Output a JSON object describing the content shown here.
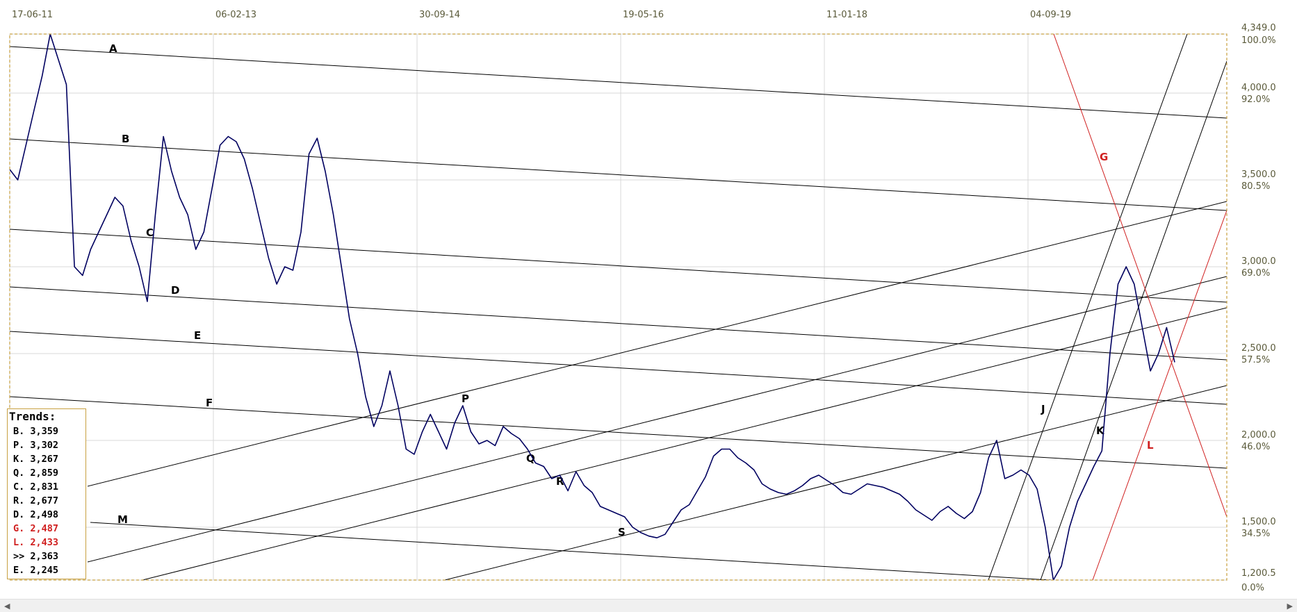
{
  "chart_data": {
    "type": "line",
    "x_ticks": [
      "17-06-11",
      "06-02-13",
      "30-09-14",
      "19-05-16",
      "11-01-18",
      "04-09-19"
    ],
    "y_ticks": [
      {
        "value": "4,349.0",
        "pct": "100.0%"
      },
      {
        "value": "4,000.0",
        "pct": "92.0%"
      },
      {
        "value": "3,500.0",
        "pct": "80.5%"
      },
      {
        "value": "3,000.0",
        "pct": "69.0%"
      },
      {
        "value": "2,500.0",
        "pct": "57.5%"
      },
      {
        "value": "2,000.0",
        "pct": "46.0%"
      },
      {
        "value": "1,500.0",
        "pct": "34.5%"
      },
      {
        "value": "1,200.5",
        "pct": "0.0%"
      }
    ],
    "price_series": [
      3560,
      3500,
      3700,
      3900,
      4100,
      4349,
      4200,
      4050,
      3000,
      2950,
      3100,
      3200,
      3300,
      3400,
      3350,
      3150,
      3000,
      2800,
      3300,
      3750,
      3550,
      3400,
      3300,
      3100,
      3200,
      3450,
      3700,
      3750,
      3720,
      3620,
      3450,
      3250,
      3050,
      2900,
      3000,
      2980,
      3200,
      3650,
      3740,
      3550,
      3300,
      3000,
      2700,
      2500,
      2250,
      2080,
      2200,
      2400,
      2200,
      1950,
      1920,
      2050,
      2150,
      2050,
      1950,
      2100,
      2200,
      2050,
      1980,
      2000,
      1970,
      2080,
      2040,
      2010,
      1950,
      1870,
      1850,
      1780,
      1800,
      1710,
      1820,
      1740,
      1700,
      1620,
      1600,
      1580,
      1560,
      1500,
      1470,
      1450,
      1440,
      1460,
      1530,
      1600,
      1630,
      1710,
      1790,
      1910,
      1950,
      1950,
      1900,
      1870,
      1830,
      1750,
      1720,
      1700,
      1690,
      1710,
      1740,
      1780,
      1800,
      1770,
      1740,
      1700,
      1690,
      1720,
      1750,
      1740,
      1730,
      1710,
      1690,
      1650,
      1600,
      1570,
      1540,
      1590,
      1620,
      1580,
      1550,
      1590,
      1700,
      1900,
      2000,
      1780,
      1800,
      1830,
      1800,
      1720,
      1500,
      1200,
      1280,
      1500,
      1650,
      1750,
      1850,
      1940,
      2500,
      2900,
      3000,
      2900,
      2650,
      2400,
      2500,
      2650,
      2450
    ],
    "trend_lines": [
      {
        "label": "A",
        "color": "black"
      },
      {
        "label": "B",
        "color": "black"
      },
      {
        "label": "C",
        "color": "black"
      },
      {
        "label": "D",
        "color": "black"
      },
      {
        "label": "E",
        "color": "black"
      },
      {
        "label": "F",
        "color": "black"
      },
      {
        "label": "M",
        "color": "black"
      },
      {
        "label": "P",
        "color": "black"
      },
      {
        "label": "Q",
        "color": "black"
      },
      {
        "label": "R",
        "color": "black"
      },
      {
        "label": "S",
        "color": "black"
      },
      {
        "label": "J",
        "color": "black"
      },
      {
        "label": "K",
        "color": "black"
      },
      {
        "label": "G",
        "color": "#d02020"
      },
      {
        "label": "L",
        "color": "#d02020"
      }
    ]
  },
  "legend": {
    "title": "Trends:",
    "items": [
      {
        "key": "B.",
        "value": "3,359",
        "color": "#000000"
      },
      {
        "key": "P.",
        "value": "3,302",
        "color": "#000000"
      },
      {
        "key": "K.",
        "value": "3,267",
        "color": "#000000"
      },
      {
        "key": "Q.",
        "value": "2,859",
        "color": "#000000"
      },
      {
        "key": "C.",
        "value": "2,831",
        "color": "#000000"
      },
      {
        "key": "R.",
        "value": "2,677",
        "color": "#000000"
      },
      {
        "key": "D.",
        "value": "2,498",
        "color": "#000000"
      },
      {
        "key": "G.",
        "value": "2,487",
        "color": "#d02020"
      },
      {
        "key": "L.",
        "value": "2,433",
        "color": "#d02020"
      },
      {
        "key": ">>",
        "value": "2,363",
        "color": "#000000"
      },
      {
        "key": "E.",
        "value": "2,245",
        "color": "#000000"
      }
    ]
  },
  "colors": {
    "price": "#000060",
    "frame": "#c8a040",
    "grid": "#d8d8d8",
    "trend_black": "#000000",
    "trend_red": "#d02020"
  }
}
